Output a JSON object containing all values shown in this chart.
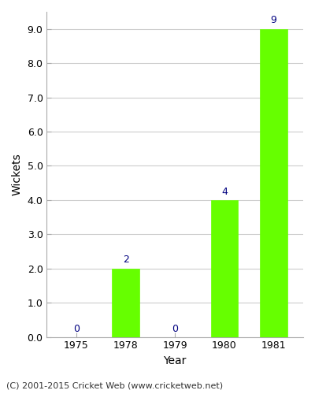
{
  "years": [
    "1975",
    "1978",
    "1979",
    "1980",
    "1981"
  ],
  "wickets": [
    0,
    2,
    0,
    4,
    9
  ],
  "bar_color": "#66ff00",
  "bar_edge_color": "#66ff00",
  "annotation_color": "#000080",
  "xlabel": "Year",
  "ylabel": "Wickets",
  "ylim": [
    0,
    9.5
  ],
  "yticks": [
    0.0,
    1.0,
    2.0,
    3.0,
    4.0,
    5.0,
    6.0,
    7.0,
    8.0,
    9.0
  ],
  "caption": "(C) 2001-2015 Cricket Web (www.cricketweb.net)",
  "background_color": "#ffffff",
  "grid_color": "#cccccc",
  "bar_width": 0.55,
  "annotation_fontsize": 9,
  "axis_label_fontsize": 10,
  "tick_fontsize": 9,
  "caption_fontsize": 8
}
